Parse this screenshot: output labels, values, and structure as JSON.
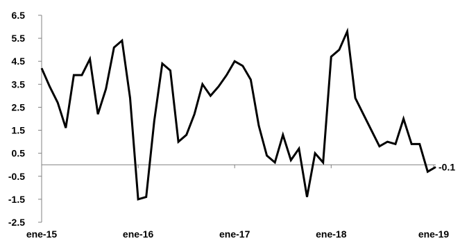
{
  "chart_data": {
    "type": "line",
    "title": "",
    "xlabel": "",
    "ylabel": "",
    "ylim": [
      -2.5,
      6.5
    ],
    "yticks": [
      6.5,
      5.5,
      4.5,
      3.5,
      2.5,
      1.5,
      0.5,
      -0.5,
      -1.5,
      -2.5
    ],
    "ytick_labels": [
      "6.5",
      "5.5",
      "4.5",
      "3.5",
      "2.5",
      "1.5",
      "0.5",
      "-0.5",
      "-1.5",
      "-2.5"
    ],
    "xtick_labels": [
      "ene-15",
      "ene-16",
      "ene-17",
      "ene-18",
      "ene-19"
    ],
    "grid": false,
    "line_color": "#000000",
    "end_label": "-0.1",
    "series": [
      {
        "values": [
          4.2,
          3.4,
          2.7,
          1.6,
          3.9,
          3.9,
          4.6,
          2.2,
          3.3,
          5.1,
          5.4,
          2.9,
          -1.5,
          -1.4,
          1.9,
          4.4,
          4.1,
          1.0,
          1.3,
          2.2,
          3.5,
          3.0,
          3.4,
          3.9,
          4.5,
          4.3,
          3.7,
          1.7,
          0.4,
          0.1,
          1.3,
          0.2,
          0.7,
          -1.4,
          0.5,
          0.1,
          4.7,
          5.0,
          5.8,
          2.9,
          2.2,
          1.5,
          0.8,
          1.0,
          0.9,
          2.0,
          0.9,
          0.9,
          -0.3,
          -0.1
        ]
      }
    ]
  }
}
